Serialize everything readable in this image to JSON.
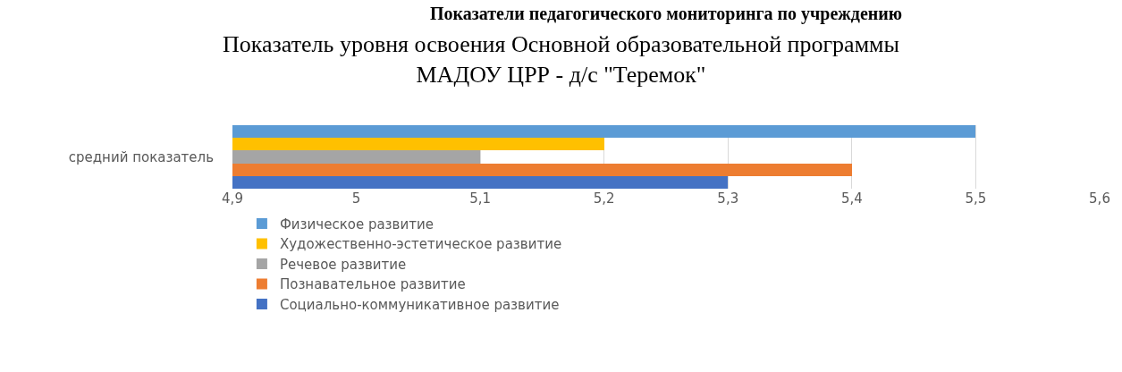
{
  "chart_data": {
    "type": "bar",
    "orientation": "horizontal",
    "title": "Показатель уровня освоения Основной образовательной программы\nМАДОУ ЦРР - д/с \"Теремок\"",
    "annotations": [
      "Показатели педагогического мониторинга по учреждению"
    ],
    "categories": [
      "средний показатель"
    ],
    "series": [
      {
        "name": "Физическое развитие",
        "color": "#5b9bd5",
        "values": [
          5.5
        ]
      },
      {
        "name": "Художественно-эстетическое развитие",
        "color": "#ffc000",
        "values": [
          5.2
        ]
      },
      {
        "name": "Речевое развитие",
        "color": "#a5a5a5",
        "values": [
          5.1
        ]
      },
      {
        "name": "Познавательное развитие",
        "color": "#ed7d31",
        "values": [
          5.4
        ]
      },
      {
        "name": "Социально-коммуникативное развитие",
        "color": "#4472c4",
        "values": [
          5.3
        ]
      }
    ],
    "xlim": [
      4.9,
      5.6
    ],
    "xticks": [
      {
        "value": 4.9,
        "label": "4,9"
      },
      {
        "value": 5,
        "label": "5"
      },
      {
        "value": 5.1,
        "label": "5,1"
      },
      {
        "value": 5.2,
        "label": "5,2"
      },
      {
        "value": 5.3,
        "label": "5,3"
      },
      {
        "value": 5.4,
        "label": "5,4"
      },
      {
        "value": 5.5,
        "label": "5,5"
      },
      {
        "value": 5.6,
        "label": "5,6"
      }
    ],
    "grid": "x",
    "legend": "bottom"
  }
}
